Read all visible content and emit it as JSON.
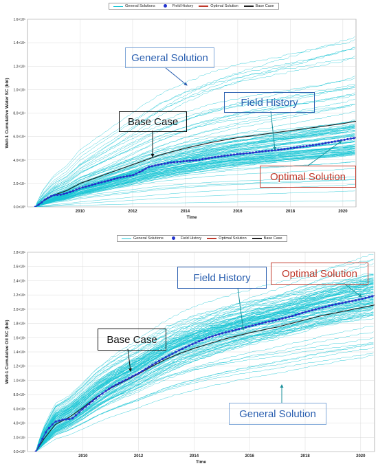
{
  "colors": {
    "general": "#16c4d4",
    "field": "#2233cc",
    "optimal": "#c0392b",
    "base": "#222222",
    "callout_blue_text": "#2a5fb0",
    "callout_red_text": "#c0392b",
    "arrow_teal": "#1a8f9a",
    "grid": "#d9d9d9"
  },
  "chart_data": [
    {
      "type": "line",
      "legend": {
        "placement": "top-center",
        "items": [
          "General Solutions",
          "Field History",
          "Optimal Solution",
          "Base Case"
        ]
      },
      "xlabel": "Time",
      "ylabel": "Well-1 Cumulative Water SC (bbl)",
      "xlim": [
        2008.0,
        2020.5
      ],
      "ylim": [
        0,
        160000
      ],
      "xticks": [
        "2010",
        "2012",
        "2014",
        "2016",
        "2018",
        "2020"
      ],
      "yticks": [
        "0.0×10⁰",
        "2.0×10⁴",
        "4.0×10⁴",
        "6.0×10⁴",
        "8.0×10⁴",
        "1.0×10⁵",
        "1.2×10⁵",
        "1.4×10⁵",
        "1.6×10⁵"
      ],
      "grid": true,
      "general_solutions": {
        "count": 110,
        "final_value_min": 2000,
        "final_value_max": 150000,
        "dense_band_final": [
          45000,
          75000
        ]
      },
      "series": [
        {
          "name": "Field History",
          "x": [
            2008.3,
            2008.5,
            2008.7,
            2009.0,
            2009.3,
            2009.6,
            2010.0,
            2010.5,
            2011.0,
            2011.5,
            2012.0,
            2012.3,
            2012.6,
            2013.0,
            2013.5,
            2014.0,
            2014.5,
            2015.0,
            2015.5,
            2016.0,
            2016.5,
            2017.0,
            2017.5,
            2018.0,
            2018.5,
            2019.0,
            2019.5,
            2020.0,
            2020.5
          ],
          "values": [
            0,
            3000,
            7000,
            10000,
            10500,
            12500,
            16000,
            19000,
            22000,
            25000,
            27000,
            30000,
            34000,
            36000,
            38000,
            39000,
            40000,
            42000,
            43500,
            45000,
            46000,
            47500,
            48500,
            50000,
            51500,
            53000,
            55000,
            57000,
            59000
          ]
        },
        {
          "name": "Optimal Solution",
          "x": [
            2008.3,
            2008.5,
            2008.7,
            2009.0,
            2009.3,
            2009.6,
            2010.0,
            2010.5,
            2011.0,
            2011.5,
            2012.0,
            2012.3,
            2012.6,
            2013.0,
            2013.5,
            2014.0,
            2014.5,
            2015.0,
            2015.5,
            2016.0,
            2016.5,
            2017.0,
            2017.5,
            2018.0,
            2018.5,
            2019.0,
            2019.5,
            2020.0,
            2020.5
          ],
          "values": [
            0,
            3000,
            7000,
            10000,
            10500,
            12500,
            16000,
            19000,
            22000,
            25000,
            27000,
            30000,
            34000,
            36000,
            38000,
            39000,
            40000,
            42000,
            43500,
            45000,
            46000,
            47500,
            48500,
            50000,
            51500,
            53000,
            55000,
            57000,
            59000
          ]
        },
        {
          "name": "Base Case",
          "x": [
            2008.3,
            2008.6,
            2009.0,
            2009.5,
            2010.0,
            2010.5,
            2011.0,
            2011.5,
            2012.0,
            2012.5,
            2013.0,
            2013.5,
            2014.0,
            2014.5,
            2015.0,
            2015.5,
            2016.0,
            2016.5,
            2017.0,
            2017.5,
            2018.0,
            2018.5,
            2019.0,
            2019.5,
            2020.0,
            2020.5
          ],
          "values": [
            0,
            5000,
            10000,
            14000,
            20000,
            24000,
            28000,
            32000,
            36000,
            40000,
            44000,
            47000,
            50000,
            52500,
            55000,
            57000,
            59000,
            60500,
            62000,
            63500,
            65000,
            66500,
            68000,
            69500,
            71000,
            73000
          ]
        }
      ],
      "annotations": [
        {
          "text": "General Solution",
          "color": "#2a5fb0"
        },
        {
          "text": "Field History",
          "color": "#2a5fb0"
        },
        {
          "text": "Base Case",
          "color": "#111111"
        },
        {
          "text": "Optimal Solution",
          "color": "#c0392b"
        }
      ]
    },
    {
      "type": "line",
      "legend": {
        "placement": "top-center",
        "items": [
          "General Solutions",
          "Field History",
          "Optimal Solution",
          "Base Case"
        ]
      },
      "xlabel": "Time",
      "ylabel": "Well-1 Cumulative Oil SC (bbl)",
      "xlim": [
        2008.0,
        2020.5
      ],
      "ylim": [
        0,
        2800000
      ],
      "xticks": [
        "2010",
        "2012",
        "2014",
        "2016",
        "2018",
        "2020"
      ],
      "yticks": [
        "0.0×10⁰",
        "2.0×10⁵",
        "4.0×10⁵",
        "6.0×10⁵",
        "8.0×10⁵",
        "1.0×10⁶",
        "1.2×10⁶",
        "1.4×10⁶",
        "1.6×10⁶",
        "1.8×10⁶",
        "2.0×10⁶",
        "2.2×10⁶",
        "2.4×10⁶",
        "2.6×10⁶",
        "2.8×10⁶"
      ],
      "grid": true,
      "general_solutions": {
        "count": 110,
        "final_value_min": 1300000,
        "final_value_max": 2800000,
        "dense_band_final": [
          1900000,
          2500000
        ]
      },
      "series": [
        {
          "name": "Field History",
          "x": [
            2008.3,
            2008.5,
            2008.7,
            2009.0,
            2009.3,
            2009.6,
            2010.0,
            2010.5,
            2011.0,
            2011.5,
            2012.0,
            2012.5,
            2013.0,
            2013.5,
            2014.0,
            2014.5,
            2015.0,
            2015.5,
            2016.0,
            2016.5,
            2017.0,
            2017.5,
            2018.0,
            2018.5,
            2019.0,
            2019.5,
            2020.0,
            2020.5
          ],
          "values": [
            0,
            150000,
            300000,
            420000,
            450000,
            460000,
            600000,
            760000,
            900000,
            1000000,
            1100000,
            1220000,
            1330000,
            1430000,
            1520000,
            1600000,
            1660000,
            1710000,
            1760000,
            1810000,
            1850000,
            1900000,
            1960000,
            2010000,
            2060000,
            2100000,
            2140000,
            2190000
          ]
        },
        {
          "name": "Optimal Solution",
          "x": [
            2008.3,
            2008.5,
            2008.7,
            2009.0,
            2009.3,
            2009.6,
            2010.0,
            2010.5,
            2011.0,
            2011.5,
            2012.0,
            2012.5,
            2013.0,
            2013.5,
            2014.0,
            2014.5,
            2015.0,
            2015.5,
            2016.0,
            2016.5,
            2017.0,
            2017.5,
            2018.0,
            2018.5,
            2019.0,
            2019.5,
            2020.0,
            2020.5
          ],
          "values": [
            0,
            150000,
            300000,
            420000,
            450000,
            460000,
            600000,
            760000,
            900000,
            1000000,
            1100000,
            1220000,
            1330000,
            1430000,
            1520000,
            1600000,
            1660000,
            1710000,
            1760000,
            1810000,
            1850000,
            1900000,
            1960000,
            2010000,
            2060000,
            2100000,
            2140000,
            2190000
          ]
        },
        {
          "name": "Base Case",
          "x": [
            2008.3,
            2008.6,
            2009.0,
            2009.5,
            2010.0,
            2010.5,
            2011.0,
            2011.5,
            2012.0,
            2012.5,
            2013.0,
            2013.5,
            2014.0,
            2014.5,
            2015.0,
            2015.5,
            2016.0,
            2016.5,
            2017.0,
            2017.5,
            2018.0,
            2018.5,
            2019.0,
            2019.5,
            2020.0,
            2020.5
          ],
          "values": [
            0,
            180000,
            380000,
            480000,
            620000,
            770000,
            890000,
            990000,
            1090000,
            1200000,
            1300000,
            1380000,
            1450000,
            1510000,
            1570000,
            1620000,
            1670000,
            1710000,
            1750000,
            1800000,
            1850000,
            1900000,
            1940000,
            1980000,
            2020000,
            2060000
          ]
        }
      ],
      "annotations": [
        {
          "text": "Field History",
          "color": "#2a5fb0"
        },
        {
          "text": "Optimal Solution",
          "color": "#c0392b"
        },
        {
          "text": "Base Case",
          "color": "#111111"
        },
        {
          "text": "General Solution",
          "color": "#2a5fb0"
        }
      ]
    }
  ]
}
